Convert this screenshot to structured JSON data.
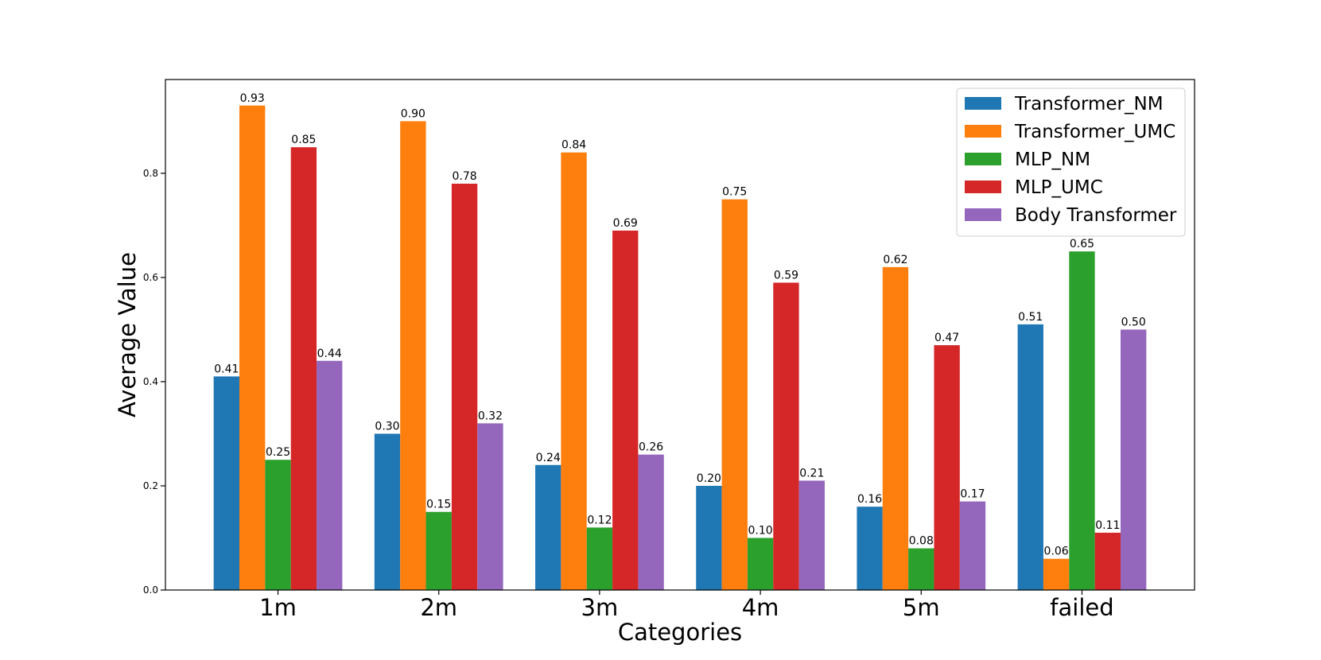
{
  "chart_data": {
    "type": "bar",
    "title": "",
    "xlabel": "Categories",
    "ylabel": "Average Value",
    "categories": [
      "1m",
      "2m",
      "3m",
      "4m",
      "5m",
      "failed"
    ],
    "ylim": [
      0,
      0.98
    ],
    "yticks": [
      0.0,
      0.2,
      0.4,
      0.6,
      0.8
    ],
    "ytick_labels": [
      "0.0",
      "0.2",
      "0.4",
      "0.6",
      "0.8"
    ],
    "grid": false,
    "legend_position": "top-right",
    "series": [
      {
        "name": "Transformer_NM",
        "color": "#1f77b4",
        "values": [
          0.41,
          0.3,
          0.24,
          0.2,
          0.16,
          0.51
        ],
        "labels": [
          "0.41",
          "0.30",
          "0.24",
          "0.20",
          "0.16",
          "0.51"
        ]
      },
      {
        "name": "Transformer_UMC",
        "color": "#ff7f0e",
        "values": [
          0.93,
          0.9,
          0.84,
          0.75,
          0.62,
          0.06
        ],
        "labels": [
          "0.93",
          "0.90",
          "0.84",
          "0.75",
          "0.62",
          "0.06"
        ]
      },
      {
        "name": "MLP_NM",
        "color": "#2ca02c",
        "values": [
          0.25,
          0.15,
          0.12,
          0.1,
          0.08,
          0.65
        ],
        "labels": [
          "0.25",
          "0.15",
          "0.12",
          "0.10",
          "0.08",
          "0.65"
        ]
      },
      {
        "name": "MLP_UMC",
        "color": "#d62728",
        "values": [
          0.85,
          0.78,
          0.69,
          0.59,
          0.47,
          0.11
        ],
        "labels": [
          "0.85",
          "0.78",
          "0.69",
          "0.59",
          "0.47",
          "0.11"
        ]
      },
      {
        "name": "Body Transformer",
        "color": "#9467bd",
        "values": [
          0.44,
          0.32,
          0.26,
          0.21,
          0.17,
          0.5
        ],
        "labels": [
          "0.44",
          "0.32",
          "0.26",
          "0.21",
          "0.17",
          "0.50"
        ]
      }
    ]
  }
}
